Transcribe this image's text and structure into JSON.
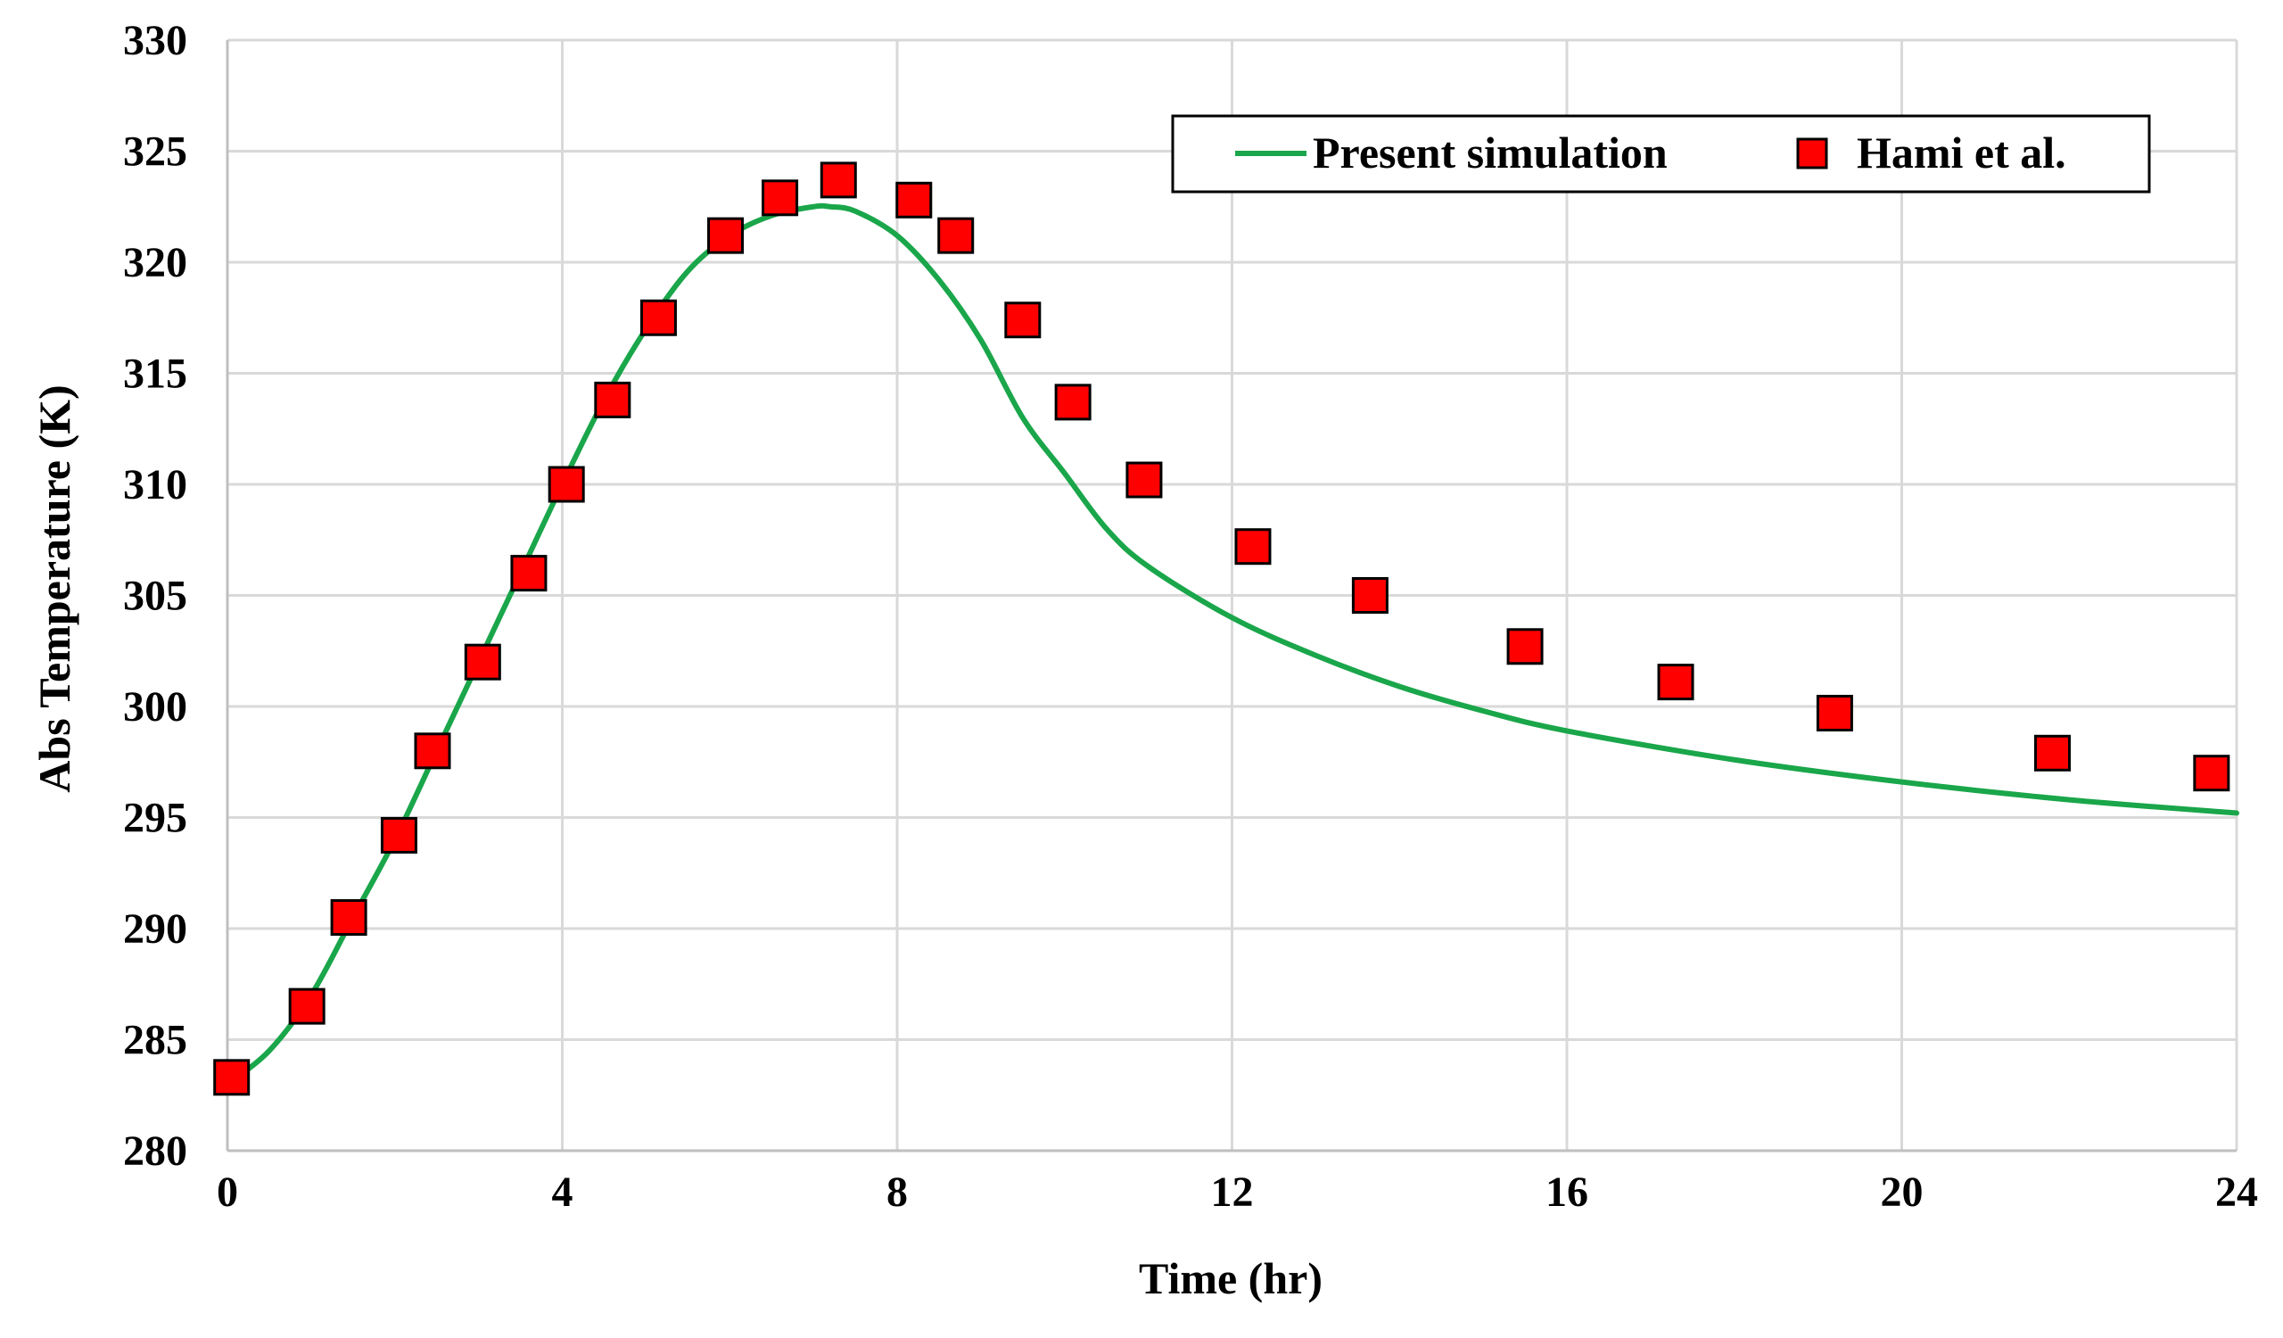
{
  "chart_data": {
    "type": "line",
    "xlabel": "Time (hr)",
    "ylabel": "Abs Temperature (K)",
    "xlim": [
      0,
      24
    ],
    "ylim": [
      280,
      330
    ],
    "xticks": [
      0,
      4,
      8,
      12,
      16,
      20,
      24
    ],
    "yticks": [
      280,
      285,
      290,
      295,
      300,
      305,
      310,
      315,
      320,
      325,
      330
    ],
    "grid": true,
    "legend_position": "top-right",
    "series": [
      {
        "name": "Present simulation",
        "kind": "line",
        "color": "#1aa64a",
        "x": [
          0,
          0.5,
          1,
          1.5,
          2,
          2.5,
          3,
          3.5,
          4,
          4.5,
          5,
          5.5,
          6,
          6.5,
          7,
          7.2,
          7.5,
          8,
          8.5,
          9,
          9.5,
          10,
          10.5,
          11,
          12,
          13,
          14,
          15,
          16,
          18,
          20,
          22,
          24
        ],
        "y": [
          283.0,
          284.5,
          287.0,
          290.5,
          294.0,
          298.0,
          302.0,
          306.0,
          310.0,
          313.8,
          317.0,
          319.6,
          321.2,
          322.1,
          322.5,
          322.5,
          322.3,
          321.2,
          319.2,
          316.5,
          313.0,
          310.5,
          308.0,
          306.3,
          304.0,
          302.3,
          300.9,
          299.8,
          298.9,
          297.6,
          296.6,
          295.8,
          295.2
        ]
      },
      {
        "name": "Hami et al.",
        "kind": "scatter",
        "color": "#ff0000",
        "x": [
          0.05,
          0.95,
          1.45,
          2.05,
          2.45,
          3.05,
          3.6,
          4.05,
          4.6,
          5.15,
          5.95,
          6.6,
          7.3,
          8.2,
          8.7,
          9.5,
          10.1,
          10.95,
          12.25,
          13.65,
          15.5,
          17.3,
          19.2,
          21.8,
          23.7
        ],
        "y": [
          283.3,
          286.5,
          290.5,
          294.2,
          298.0,
          302.0,
          306.0,
          310.0,
          313.8,
          317.5,
          321.2,
          322.9,
          323.7,
          322.8,
          321.2,
          317.4,
          313.7,
          310.2,
          307.2,
          305.0,
          302.7,
          301.1,
          299.7,
          297.9,
          297.0
        ]
      }
    ]
  }
}
